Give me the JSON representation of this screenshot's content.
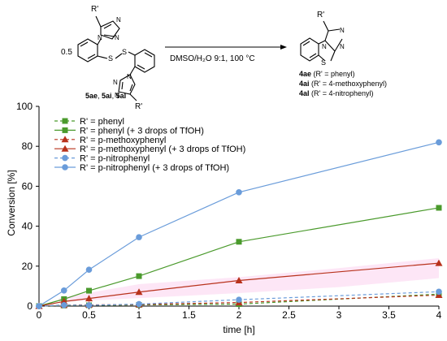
{
  "scheme": {
    "reactant_factor": "0.5",
    "reactant_substituent": "R'",
    "reactant_labels": [
      "5ae",
      ", ",
      "5ai",
      ", ",
      "5al"
    ],
    "condition": "DMSO/H₂O 9:1, 100 °C",
    "product_substituent": "R'",
    "products": [
      {
        "code": "4ae",
        "desc": " (R' = phenyl)"
      },
      {
        "code": "4ai",
        "desc": " (R' = 4-methoxyphenyl)"
      },
      {
        "code": "4al",
        "desc": " (R' = 4-nitrophenyl)"
      }
    ]
  },
  "colors": {
    "green": "#4a9a2c",
    "red": "#b8321c",
    "blue": "#6a9cda",
    "highlight": "#f48cd4"
  },
  "chart_data": {
    "type": "line",
    "xlabel": "time [h]",
    "ylabel": "Conversion [%]",
    "xlim": [
      0,
      4
    ],
    "ylim": [
      0,
      100
    ],
    "xticks": [
      0,
      0.5,
      1,
      1.5,
      2,
      2.5,
      3,
      3.5,
      4
    ],
    "yticks": [
      0,
      20,
      40,
      60,
      80,
      100
    ],
    "grid": false,
    "legend_position": "top-left",
    "series": [
      {
        "name": "R' = phenyl",
        "marker": "square",
        "color": "#4a9a2c",
        "dashed": true,
        "x": [
          0,
          0.25,
          0.5,
          1,
          2,
          4
        ],
        "y": [
          0,
          0.3,
          0.4,
          0.6,
          1.0,
          6.0
        ]
      },
      {
        "name": "R' = phenyl (+ 3 drops of TfOH)",
        "marker": "square",
        "color": "#4a9a2c",
        "dashed": false,
        "x": [
          0,
          0.25,
          0.5,
          1,
          2,
          4
        ],
        "y": [
          0,
          3.5,
          7.7,
          15.0,
          32.2,
          49.2
        ]
      },
      {
        "name": "R' = p-methoxyphenyl",
        "marker": "triangle",
        "color": "#b8321c",
        "dashed": true,
        "x": [
          0,
          0.25,
          0.5,
          1,
          2,
          4
        ],
        "y": [
          0,
          0.5,
          0.6,
          0.8,
          1.8,
          5.5
        ]
      },
      {
        "name": "R' = p-methoxyphenyl (+ 3 drops of TfOH)",
        "marker": "triangle",
        "color": "#b8321c",
        "dashed": false,
        "x": [
          0,
          0.25,
          0.5,
          1,
          2,
          4
        ],
        "y": [
          0,
          2.3,
          3.8,
          7.0,
          12.8,
          21.5
        ]
      },
      {
        "name": "R' = p-nitrophenyl",
        "marker": "circle",
        "color": "#6a9cda",
        "dashed": true,
        "x": [
          0,
          0.25,
          0.5,
          1,
          2,
          4
        ],
        "y": [
          0,
          0.5,
          0.4,
          1.0,
          3.2,
          7.2
        ]
      },
      {
        "name": "R' = p-nitrophenyl (+ 3 drops of TfOH)",
        "marker": "circle",
        "color": "#6a9cda",
        "dashed": false,
        "x": [
          0,
          0.25,
          0.5,
          1,
          2,
          4
        ],
        "y": [
          0,
          7.8,
          18.2,
          34.5,
          57.0,
          82.0
        ]
      }
    ]
  }
}
